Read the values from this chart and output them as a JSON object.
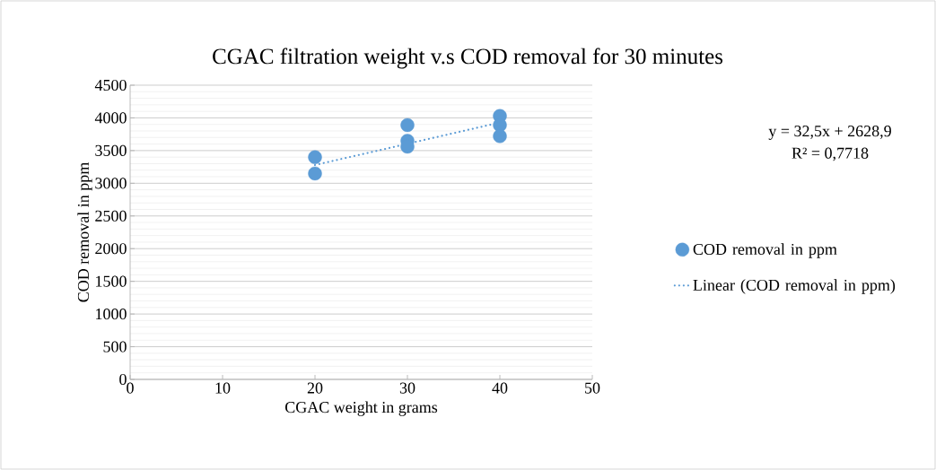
{
  "chart_data": {
    "type": "scatter",
    "title": "CGAC filtration weight v.s COD removal for 30 minutes",
    "xlabel": "CGAC weight in grams",
    "ylabel": "COD removal in ppm",
    "series": [
      {
        "name": "COD removal in ppm",
        "color": "#5b9bd5",
        "marker": "circle",
        "x": [
          20,
          20,
          30,
          30,
          30,
          40,
          40,
          40
        ],
        "values": [
          3400,
          3150,
          3890,
          3650,
          3560,
          4030,
          3890,
          3720
        ]
      },
      {
        "name": "Linear (COD removal in ppm)",
        "color": "#5b9bd5",
        "type": "line",
        "line_style": "dotted",
        "marker": "none",
        "x": [
          20,
          40
        ],
        "values": [
          3279,
          3929
        ]
      }
    ],
    "xlim": [
      0,
      50
    ],
    "xticks": [
      0,
      10,
      20,
      30,
      40,
      50
    ],
    "ylim": [
      0,
      4500
    ],
    "yticks": [
      0,
      500,
      1000,
      1500,
      2000,
      2500,
      3000,
      3500,
      4000,
      4500
    ],
    "grid": "y",
    "legend": "right",
    "annotations": [
      "y = 32,5x + 2628,9",
      "R² = 0,7718"
    ]
  }
}
